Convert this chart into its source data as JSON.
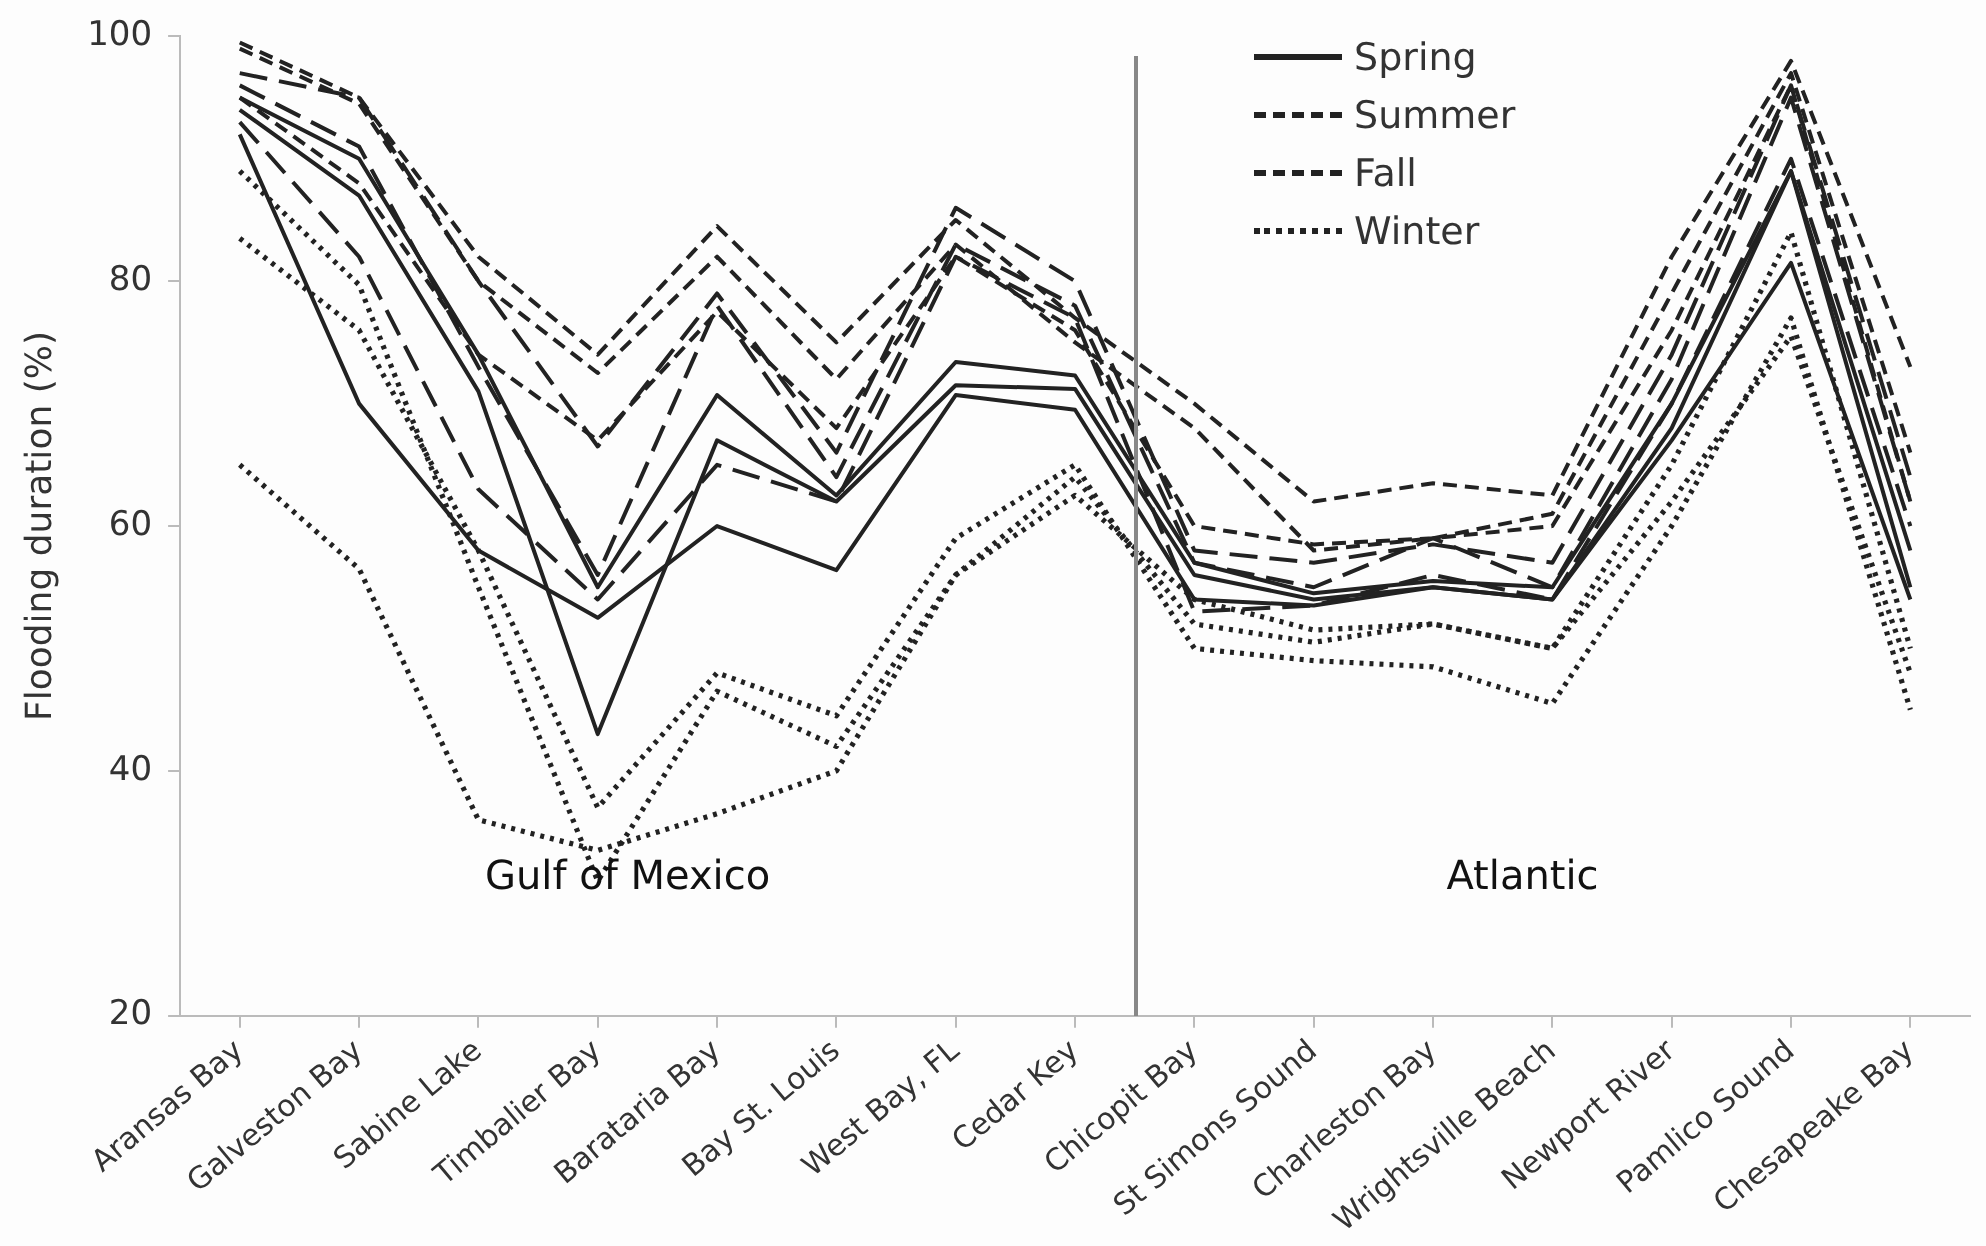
{
  "chart_data": {
    "type": "line",
    "ylabel": "Flooding duration (%)",
    "categories": [
      "Aransas Bay",
      "Galveston Bay",
      "Sabine Lake",
      "Timbalier Bay",
      "Barataria Bay",
      "Bay St. Louis",
      "West Bay, FL",
      "Cedar Key",
      "Chicopit Bay",
      "St Simons Sound",
      "Charleston Bay",
      "Wrightsville Beach",
      "Newport River",
      "Pamlico Sound",
      "Chesapeake Bay"
    ],
    "ylim": [
      20,
      100
    ],
    "yticks": [
      20,
      40,
      60,
      80,
      100
    ],
    "grid": false,
    "legend": "top right",
    "marker": "none",
    "annotations": [
      "Gulf of Mexico",
      "Atlantic"
    ],
    "series": [
      {
        "name": "Spring",
        "color": "#222222",
        "line_style": "solid",
        "values": [
          95,
          90,
          74,
          55,
          70.7,
          62.5,
          73.4,
          72.3,
          57,
          54.5,
          55.5,
          55,
          70,
          89,
          58
        ]
      },
      {
        "color": "#222222",
        "line_style": "solid",
        "values": [
          94,
          87,
          71,
          43,
          67,
          62,
          71.5,
          71.2,
          56,
          54,
          55,
          54,
          68,
          89,
          55
        ]
      },
      {
        "color": "#222222",
        "line_style": "solid",
        "values": [
          92,
          70,
          58,
          52.5,
          60,
          56.4,
          70.7,
          69.5,
          54,
          53.5,
          55,
          54,
          67,
          81.5,
          54
        ]
      },
      {
        "name": "Summer",
        "color": "#222222",
        "line_style": "longdash",
        "values": [
          97,
          95,
          80,
          66.5,
          79,
          66,
          86,
          80,
          58,
          57,
          58.5,
          57,
          74,
          96,
          64
        ]
      },
      {
        "color": "#222222",
        "line_style": "longdash",
        "values": [
          96,
          91,
          73,
          56,
          78,
          64,
          83,
          78,
          57,
          55,
          59,
          55,
          72,
          95,
          62
        ]
      },
      {
        "color": "#222222",
        "line_style": "longdash",
        "values": [
          93,
          82,
          63,
          54,
          65,
          62,
          82,
          77,
          53,
          53.5,
          56,
          54,
          70,
          90,
          60
        ]
      },
      {
        "name": "Fall",
        "color": "#222222",
        "line_style": "dashed",
        "values": [
          99.5,
          95,
          82,
          74,
          84.5,
          75,
          85,
          77,
          70,
          62,
          63.5,
          62.5,
          82,
          98,
          73
        ]
      },
      {
        "color": "#222222",
        "line_style": "dashed",
        "values": [
          99,
          94.5,
          80,
          72.5,
          82,
          72,
          83,
          75,
          68,
          58,
          59,
          61,
          79,
          97,
          66
        ]
      },
      {
        "color": "#222222",
        "line_style": "dashed",
        "values": [
          95,
          88,
          74,
          67,
          77.5,
          68,
          82,
          76,
          60,
          58.5,
          59,
          60,
          76,
          96,
          62
        ]
      },
      {
        "name": "Winter",
        "color": "#222222",
        "line_style": "dotted",
        "values": [
          89,
          79.7,
          55,
          31,
          46.5,
          42,
          56,
          64,
          52,
          50.5,
          52,
          50,
          65,
          84,
          50
        ]
      },
      {
        "color": "#222222",
        "line_style": "dotted",
        "values": [
          83.5,
          76,
          58,
          37,
          48,
          44.5,
          59,
          65,
          50,
          49,
          48.5,
          45.5,
          60,
          77,
          45
        ]
      },
      {
        "color": "#222222",
        "line_style": "dotted",
        "values": [
          65,
          56.5,
          36,
          33.5,
          36.5,
          40,
          56,
          62.5,
          54,
          51.5,
          52,
          50,
          62,
          75.5,
          48
        ]
      }
    ]
  }
}
